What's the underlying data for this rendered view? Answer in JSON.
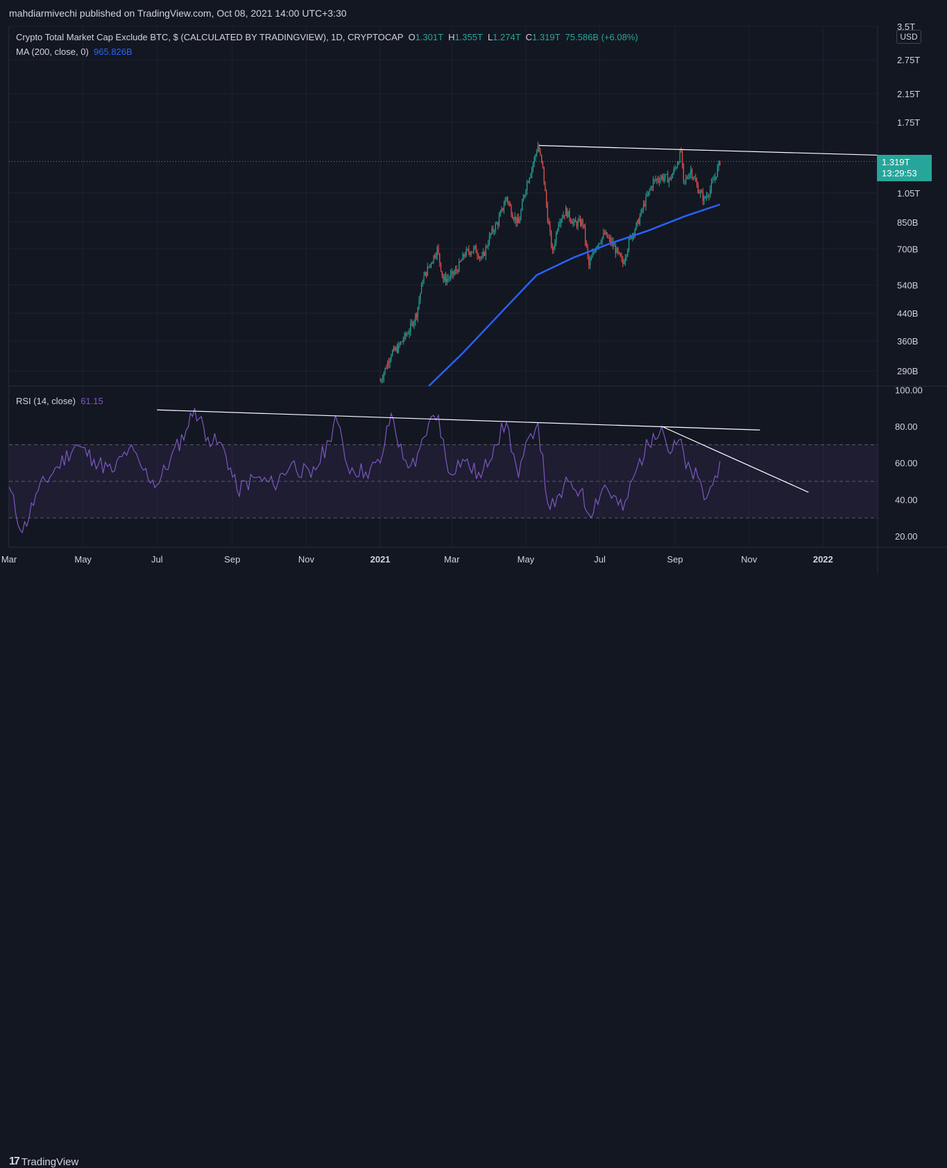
{
  "header": {
    "published": "mahdiarmivechi published on TradingView.com, Oct 08, 2021 14:00 UTC+3:30"
  },
  "legend": {
    "symbol": "Crypto Total Market Cap Exclude BTC, $ (CALCULATED BY TRADINGVIEW), 1D, CRYPTOCAP",
    "o_label": "O",
    "o_value": "1.301T",
    "h_label": "H",
    "h_value": "1.355T",
    "l_label": "L",
    "l_value": "1.274T",
    "c_label": "C",
    "c_value": "1.319T",
    "change": "75.586B (+6.08%)",
    "ma_label": "MA (200, close, 0)",
    "ma_value": "965.826B",
    "rsi_label": "RSI (14, close)",
    "rsi_value": "61.15"
  },
  "price_scale": {
    "currency": "USD",
    "last_price": "1.319T",
    "countdown": "13:29:53"
  },
  "footer": {
    "brand": "TradingView",
    "brand_mark": "17"
  },
  "colors": {
    "background": "#131722",
    "up": "#26a69a",
    "down": "#ef5350",
    "ma": "#2962ff",
    "rsi": "#7e57c2",
    "trendline": "#ffffff"
  },
  "chart_data": [
    {
      "type": "candlestick",
      "title": "Crypto Total Market Cap Exclude BTC, $ (CALCULATED BY TRADINGVIEW), 1D, CRYPTOCAP",
      "scale": "log",
      "ylim": [
        260,
        3500
      ],
      "y_unit": "B",
      "y_ticks": [
        {
          "value": 3500,
          "label": "3.5T"
        },
        {
          "value": 2750,
          "label": "2.75T"
        },
        {
          "value": 2150,
          "label": "2.15T"
        },
        {
          "value": 1750,
          "label": "1.75T"
        },
        {
          "value": 1319,
          "label": "1.319T"
        },
        {
          "value": 1050,
          "label": "1.05T"
        },
        {
          "value": 850,
          "label": "850B"
        },
        {
          "value": 700,
          "label": "700B"
        },
        {
          "value": 540,
          "label": "540B"
        },
        {
          "value": 440,
          "label": "440B"
        },
        {
          "value": 360,
          "label": "360B"
        },
        {
          "value": 290,
          "label": "290B"
        }
      ],
      "x_ticks": [
        "Mar",
        "May",
        "Jul",
        "Sep",
        "Nov",
        "2021",
        "Mar",
        "May",
        "Jul",
        "Sep",
        "Nov",
        "2022"
      ],
      "x_range": [
        "2020-03-01",
        "2022-02-15"
      ],
      "price_path": [
        {
          "date": "2021-01-01",
          "value": 270
        },
        {
          "date": "2021-01-06",
          "value": 300
        },
        {
          "date": "2021-01-10",
          "value": 330
        },
        {
          "date": "2021-01-15",
          "value": 340
        },
        {
          "date": "2021-01-20",
          "value": 365
        },
        {
          "date": "2021-01-25",
          "value": 390
        },
        {
          "date": "2021-01-31",
          "value": 440
        },
        {
          "date": "2021-02-05",
          "value": 560
        },
        {
          "date": "2021-02-12",
          "value": 640
        },
        {
          "date": "2021-02-17",
          "value": 700
        },
        {
          "date": "2021-02-22",
          "value": 560
        },
        {
          "date": "2021-02-27",
          "value": 570
        },
        {
          "date": "2021-03-05",
          "value": 600
        },
        {
          "date": "2021-03-12",
          "value": 680
        },
        {
          "date": "2021-03-20",
          "value": 700
        },
        {
          "date": "2021-03-26",
          "value": 650
        },
        {
          "date": "2021-04-02",
          "value": 780
        },
        {
          "date": "2021-04-08",
          "value": 850
        },
        {
          "date": "2021-04-15",
          "value": 1020
        },
        {
          "date": "2021-04-20",
          "value": 900
        },
        {
          "date": "2021-04-25",
          "value": 840
        },
        {
          "date": "2021-05-01",
          "value": 1100
        },
        {
          "date": "2021-05-07",
          "value": 1300
        },
        {
          "date": "2021-05-11",
          "value": 1480
        },
        {
          "date": "2021-05-15",
          "value": 1250
        },
        {
          "date": "2021-05-19",
          "value": 880
        },
        {
          "date": "2021-05-23",
          "value": 680
        },
        {
          "date": "2021-05-28",
          "value": 860
        },
        {
          "date": "2021-06-03",
          "value": 920
        },
        {
          "date": "2021-06-10",
          "value": 840
        },
        {
          "date": "2021-06-17",
          "value": 850
        },
        {
          "date": "2021-06-22",
          "value": 620
        },
        {
          "date": "2021-06-28",
          "value": 720
        },
        {
          "date": "2021-07-05",
          "value": 780
        },
        {
          "date": "2021-07-12",
          "value": 720
        },
        {
          "date": "2021-07-20",
          "value": 630
        },
        {
          "date": "2021-07-26",
          "value": 760
        },
        {
          "date": "2021-08-01",
          "value": 840
        },
        {
          "date": "2021-08-07",
          "value": 980
        },
        {
          "date": "2021-08-14",
          "value": 1140
        },
        {
          "date": "2021-08-21",
          "value": 1180
        },
        {
          "date": "2021-08-28",
          "value": 1160
        },
        {
          "date": "2021-09-02",
          "value": 1280
        },
        {
          "date": "2021-09-06",
          "value": 1420
        },
        {
          "date": "2021-09-08",
          "value": 1120
        },
        {
          "date": "2021-09-14",
          "value": 1240
        },
        {
          "date": "2021-09-20",
          "value": 1080
        },
        {
          "date": "2021-09-25",
          "value": 1000
        },
        {
          "date": "2021-09-30",
          "value": 1080
        },
        {
          "date": "2021-10-04",
          "value": 1180
        },
        {
          "date": "2021-10-08",
          "value": 1319
        }
      ],
      "ma": {
        "name": "MA (200, close, 0)",
        "points": [
          {
            "date": "2021-02-10",
            "value": 260
          },
          {
            "date": "2021-03-10",
            "value": 330
          },
          {
            "date": "2021-04-10",
            "value": 440
          },
          {
            "date": "2021-05-10",
            "value": 580
          },
          {
            "date": "2021-06-10",
            "value": 660
          },
          {
            "date": "2021-07-10",
            "value": 730
          },
          {
            "date": "2021-08-10",
            "value": 800
          },
          {
            "date": "2021-09-10",
            "value": 890
          },
          {
            "date": "2021-10-08",
            "value": 966
          }
        ]
      },
      "trendlines": [
        {
          "from": {
            "date": "2021-05-12",
            "value": 1480
          },
          "to": {
            "date": "2022-02-15",
            "value": 1380
          }
        }
      ],
      "last_value": 1319,
      "last_price_line": 1319
    },
    {
      "type": "line",
      "title": "RSI (14, close)",
      "ylim": [
        14,
        102
      ],
      "y_ticks": [
        100,
        80,
        60,
        40,
        20
      ],
      "band": [
        30,
        70
      ],
      "midline": 50,
      "series": [
        {
          "name": "RSI (14, close)",
          "points": [
            {
              "date": "2020-03-01",
              "value": 47
            },
            {
              "date": "2020-03-12",
              "value": 22
            },
            {
              "date": "2020-03-25",
              "value": 45
            },
            {
              "date": "2020-04-10",
              "value": 58
            },
            {
              "date": "2020-04-25",
              "value": 70
            },
            {
              "date": "2020-05-10",
              "value": 62
            },
            {
              "date": "2020-05-25",
              "value": 55
            },
            {
              "date": "2020-06-08",
              "value": 68
            },
            {
              "date": "2020-06-20",
              "value": 56
            },
            {
              "date": "2020-07-01",
              "value": 48
            },
            {
              "date": "2020-07-12",
              "value": 62
            },
            {
              "date": "2020-07-25",
              "value": 78
            },
            {
              "date": "2020-08-01",
              "value": 90
            },
            {
              "date": "2020-08-12",
              "value": 74
            },
            {
              "date": "2020-08-25",
              "value": 68
            },
            {
              "date": "2020-09-05",
              "value": 45
            },
            {
              "date": "2020-09-20",
              "value": 52
            },
            {
              "date": "2020-10-05",
              "value": 48
            },
            {
              "date": "2020-10-20",
              "value": 60
            },
            {
              "date": "2020-11-05",
              "value": 52
            },
            {
              "date": "2020-11-20",
              "value": 72
            },
            {
              "date": "2020-11-25",
              "value": 86
            },
            {
              "date": "2020-12-05",
              "value": 58
            },
            {
              "date": "2020-12-20",
              "value": 55
            },
            {
              "date": "2021-01-01",
              "value": 60
            },
            {
              "date": "2021-01-10",
              "value": 87
            },
            {
              "date": "2021-01-20",
              "value": 62
            },
            {
              "date": "2021-01-30",
              "value": 58
            },
            {
              "date": "2021-02-10",
              "value": 82
            },
            {
              "date": "2021-02-18",
              "value": 86
            },
            {
              "date": "2021-02-26",
              "value": 55
            },
            {
              "date": "2021-03-10",
              "value": 62
            },
            {
              "date": "2021-03-25",
              "value": 52
            },
            {
              "date": "2021-04-05",
              "value": 70
            },
            {
              "date": "2021-04-15",
              "value": 82
            },
            {
              "date": "2021-04-25",
              "value": 52
            },
            {
              "date": "2021-05-05",
              "value": 76
            },
            {
              "date": "2021-05-11",
              "value": 82
            },
            {
              "date": "2021-05-19",
              "value": 38
            },
            {
              "date": "2021-05-25",
              "value": 36
            },
            {
              "date": "2021-06-05",
              "value": 50
            },
            {
              "date": "2021-06-15",
              "value": 45
            },
            {
              "date": "2021-06-22",
              "value": 32
            },
            {
              "date": "2021-07-05",
              "value": 48
            },
            {
              "date": "2021-07-20",
              "value": 34
            },
            {
              "date": "2021-08-01",
              "value": 58
            },
            {
              "date": "2021-08-14",
              "value": 76
            },
            {
              "date": "2021-08-21",
              "value": 80
            },
            {
              "date": "2021-08-28",
              "value": 65
            },
            {
              "date": "2021-09-02",
              "value": 70
            },
            {
              "date": "2021-09-06",
              "value": 73
            },
            {
              "date": "2021-09-10",
              "value": 57
            },
            {
              "date": "2021-09-20",
              "value": 52
            },
            {
              "date": "2021-09-25",
              "value": 40
            },
            {
              "date": "2021-10-02",
              "value": 48
            },
            {
              "date": "2021-10-08",
              "value": 61
            }
          ]
        }
      ],
      "trendlines": [
        {
          "from": {
            "date": "2020-07-01",
            "value": 89
          },
          "to": {
            "date": "2021-11-10",
            "value": 78
          }
        },
        {
          "from": {
            "date": "2021-08-21",
            "value": 80
          },
          "to": {
            "date": "2021-12-20",
            "value": 44
          }
        }
      ],
      "last_value": 61.15
    }
  ]
}
